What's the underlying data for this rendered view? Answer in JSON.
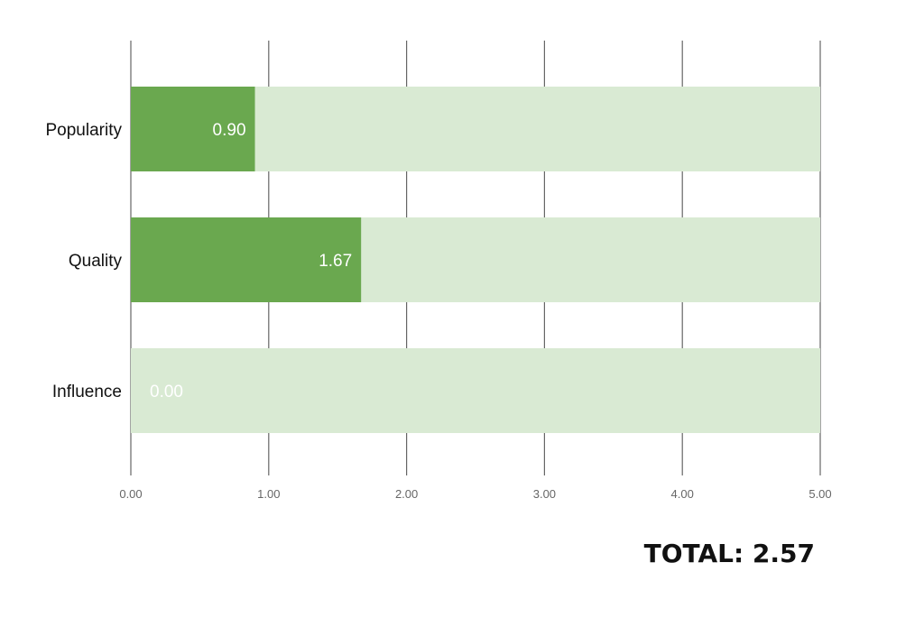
{
  "chart_data": {
    "type": "bar",
    "orientation": "horizontal",
    "stacked": true,
    "categories": [
      "Popularity",
      "Quality",
      "Influence"
    ],
    "values": [
      0.9,
      1.67,
      0.0
    ],
    "max_values": [
      5.0,
      5.0,
      5.0
    ],
    "value_labels": [
      "0.90",
      "1.67",
      "0.00"
    ],
    "xticks": [
      "0.00",
      "1.00",
      "2.00",
      "3.00",
      "4.00",
      "5.00"
    ],
    "xlim": [
      0,
      5
    ],
    "title": "",
    "xlabel": "",
    "ylabel": "",
    "grid": true,
    "legend": "none",
    "colors": {
      "value": "#6aa84f",
      "remainder": "#d9ead3",
      "grid": "#666666"
    }
  },
  "total": {
    "text": "TOTAL: 2.57"
  }
}
